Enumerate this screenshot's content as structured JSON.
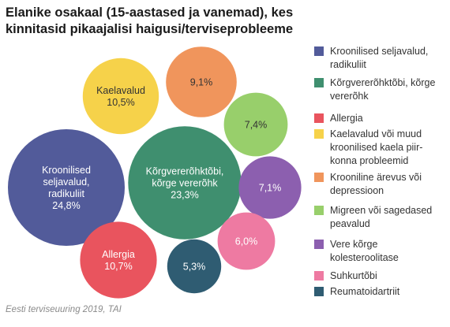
{
  "chart_data": {
    "type": "bubble",
    "title": "Elanike osakaal (15-aastased ja vanemad), kes kinnitasid pikaajalisi haigusi/terviseprobleeme",
    "source": "Eesti terviseuuring 2019, TAI",
    "legend_position": "right",
    "series": [
      {
        "name": "Kroonilised seljavalud, radikuliit",
        "label": "Kroonilised seljavalud, radikuliit",
        "value_label": "24,8%",
        "value": 24.8,
        "color": "#525b9a",
        "text_color": "#ffffff"
      },
      {
        "name": "Kõrgvererõhktõbi, kõrge vererõhk",
        "label": "Kõrgvererõhktõbi, kõrge vererõhk",
        "value_label": "23,3%",
        "value": 23.3,
        "color": "#3f8f6f",
        "text_color": "#ffffff"
      },
      {
        "name": "Allergia",
        "label": "Allergia",
        "value_label": "10,7%",
        "value": 10.7,
        "color": "#e9545e",
        "text_color": "#ffffff"
      },
      {
        "name": "Kaelavalud või muud kroonilised kaela piir-konna probleemid",
        "label": "Kaelavalud",
        "value_label": "10,5%",
        "value": 10.5,
        "color": "#f6d24a",
        "text_color": "#333333"
      },
      {
        "name": "Krooniline ärevus või depressioon",
        "label": "",
        "value_label": "9,1%",
        "value": 9.1,
        "color": "#f0955c",
        "text_color": "#333333"
      },
      {
        "name": "Migreen või sagedased peavalud",
        "label": "",
        "value_label": "7,4%",
        "value": 7.4,
        "color": "#98cf6b",
        "text_color": "#333333"
      },
      {
        "name": "Vere kõrge kolesteroolitase",
        "label": "",
        "value_label": "7,1%",
        "value": 7.1,
        "color": "#8c5faf",
        "text_color": "#ffffff"
      },
      {
        "name": "Suhkurtõbi",
        "label": "",
        "value_label": "6,0%",
        "value": 6.0,
        "color": "#ee7aa2",
        "text_color": "#ffffff"
      },
      {
        "name": "Reumatoidartriit",
        "label": "",
        "value_label": "5,3%",
        "value": 5.3,
        "color": "#2f5c72",
        "text_color": "#ffffff"
      }
    ]
  }
}
